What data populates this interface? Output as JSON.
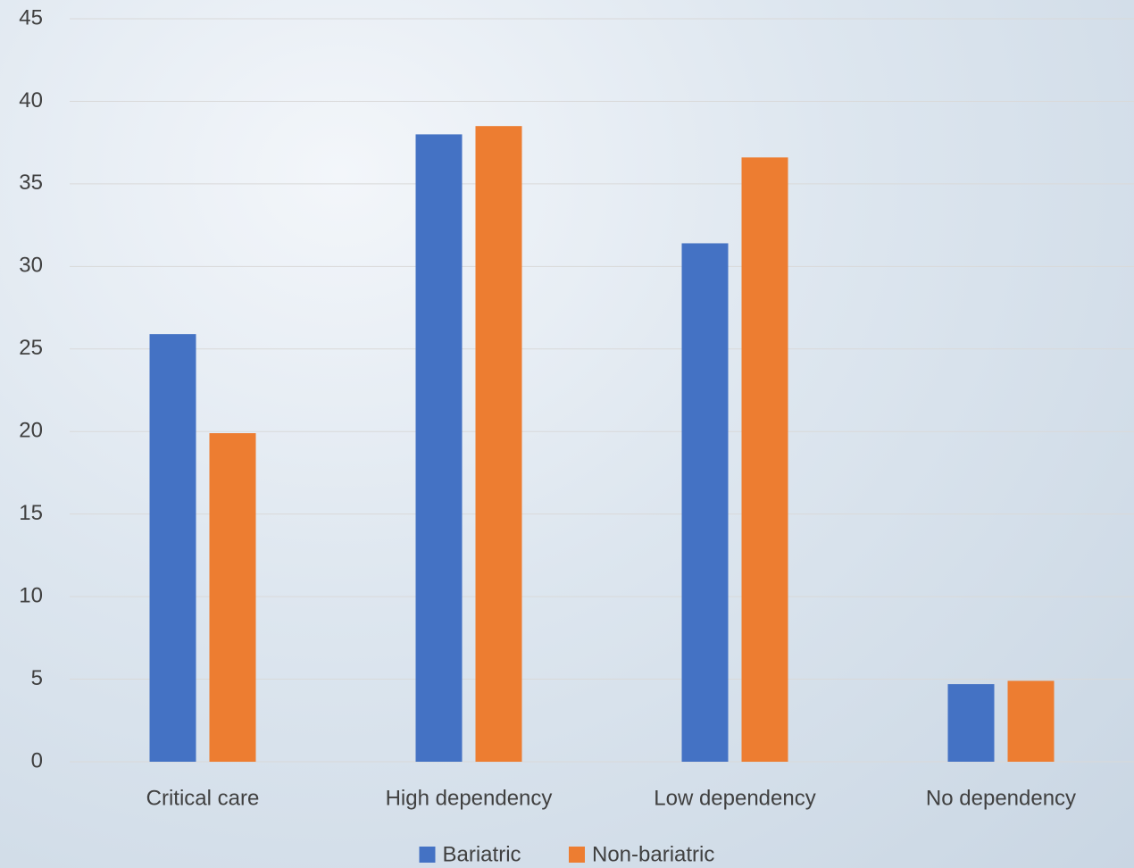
{
  "chart_data": {
    "type": "bar",
    "categories": [
      "Critical care",
      "High dependency",
      "Low dependency",
      "No dependency"
    ],
    "series": [
      {
        "name": "Bariatric",
        "color": "#4472c4",
        "values": [
          25.9,
          38.0,
          31.4,
          4.7
        ]
      },
      {
        "name": "Non-bariatric",
        "color": "#ed7d31",
        "values": [
          19.9,
          38.5,
          36.6,
          4.9
        ]
      }
    ],
    "ylim": [
      0,
      45
    ],
    "yticks": [
      0,
      5,
      10,
      15,
      20,
      25,
      30,
      35,
      40,
      45
    ],
    "grid": true,
    "legend": "bottom"
  }
}
